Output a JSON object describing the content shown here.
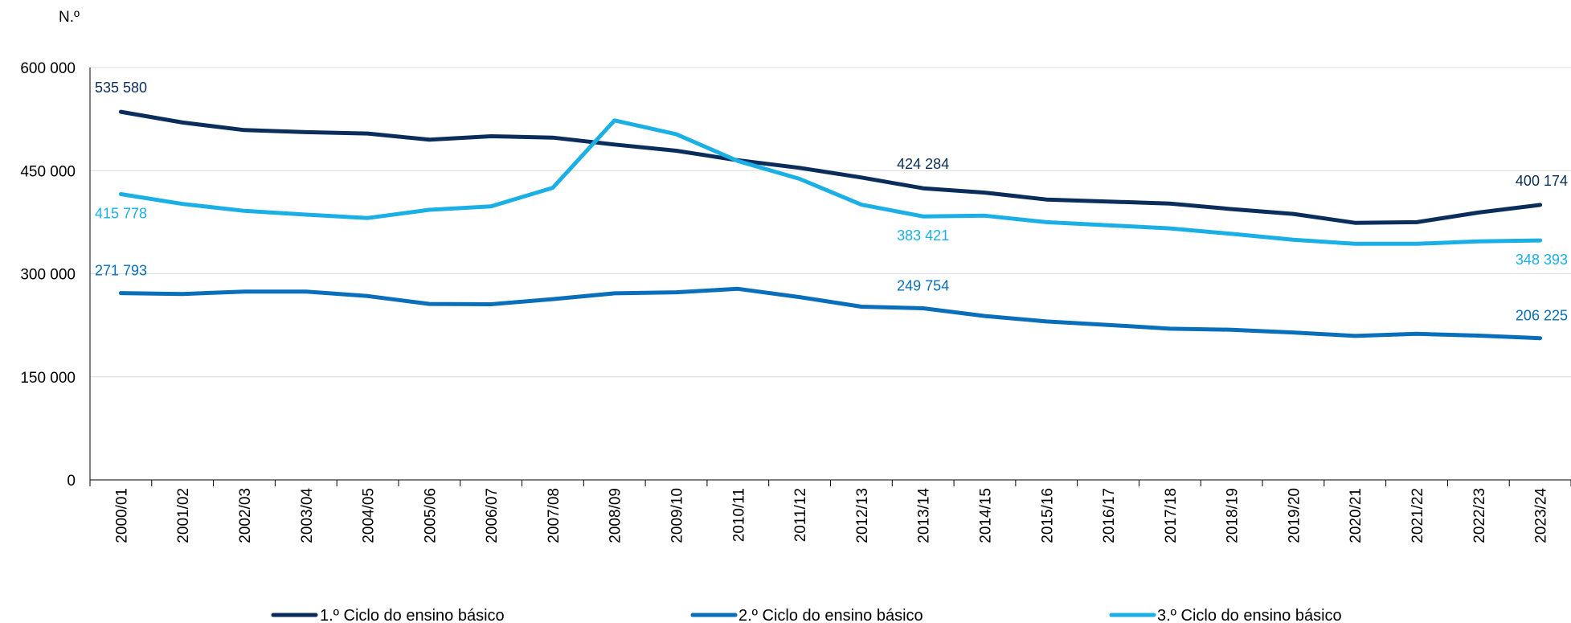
{
  "chart_data": {
    "type": "line",
    "y_unit_label": "N.º",
    "ylim": [
      0,
      600000
    ],
    "yticks": [
      0,
      150000,
      300000,
      450000,
      600000
    ],
    "ytick_labels": [
      "0",
      "150 000",
      "300 000",
      "450 000",
      "600 000"
    ],
    "grid": true,
    "legend_position": "bottom",
    "categories": [
      "2000/01",
      "2001/02",
      "2002/03",
      "2003/04",
      "2004/05",
      "2005/06",
      "2006/07",
      "2007/08",
      "2008/09",
      "2009/10",
      "2010/11",
      "2011/12",
      "2012/13",
      "2013/14",
      "2014/15",
      "2015/16",
      "2016/17",
      "2017/18",
      "2018/19",
      "2019/20",
      "2020/21",
      "2021/22",
      "2022/23",
      "2023/24"
    ],
    "series": [
      {
        "name": "1.º Ciclo do ensino básico",
        "color": "#0b2d5b",
        "values": [
          535580,
          520000,
          509000,
          506000,
          504000,
          495000,
          500000,
          498000,
          488000,
          479000,
          465000,
          454000,
          440000,
          424284,
          418000,
          408000,
          405000,
          402000,
          394000,
          387000,
          374000,
          375000,
          389000,
          400174
        ],
        "labels": [
          {
            "index": 0,
            "text": "535 580"
          },
          {
            "index": 13,
            "text": "424 284"
          },
          {
            "index": 23,
            "text": "400 174"
          }
        ]
      },
      {
        "name": "2.º Ciclo do ensino básico",
        "color": "#0a6fba",
        "values": [
          271793,
          270500,
          274000,
          274000,
          267500,
          256000,
          255500,
          263000,
          271500,
          273000,
          278000,
          266000,
          252000,
          249754,
          238500,
          230500,
          225500,
          220000,
          218500,
          214500,
          209500,
          212500,
          210000,
          206225
        ],
        "labels": [
          {
            "index": 0,
            "text": "271 793"
          },
          {
            "index": 13,
            "text": "249 754"
          },
          {
            "index": 23,
            "text": "206 225"
          }
        ]
      },
      {
        "name": "3.º Ciclo do ensino básico",
        "color": "#1ab0e6",
        "values": [
          415778,
          401500,
          391500,
          386000,
          381000,
          393000,
          398000,
          425000,
          523000,
          503000,
          464000,
          438000,
          400500,
          383421,
          384500,
          375000,
          370500,
          366000,
          358000,
          349500,
          343500,
          343500,
          347000,
          348393
        ],
        "labels": [
          {
            "index": 0,
            "text": "415 778"
          },
          {
            "index": 13,
            "text": "383 421"
          },
          {
            "index": 23,
            "text": "348 393"
          }
        ]
      }
    ]
  }
}
